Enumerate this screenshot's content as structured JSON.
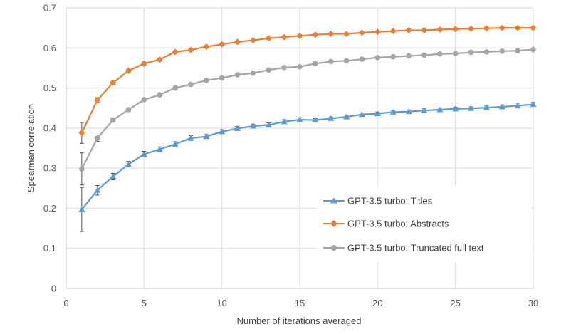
{
  "chart_data": {
    "type": "line",
    "title": "",
    "xlabel": "Number of iterations averaged",
    "ylabel": "Spearman correlation",
    "xlim": [
      0,
      30
    ],
    "ylim": [
      0,
      0.7
    ],
    "xticks": [
      0,
      5,
      10,
      15,
      20,
      25,
      30
    ],
    "yticks": [
      0,
      0.1,
      0.2,
      0.3,
      0.4,
      0.5,
      0.6,
      0.7
    ],
    "ytick_labels": [
      "0",
      "0.1",
      "0.2",
      "0.3",
      "0.4",
      "0.5",
      "0.6",
      "0.7"
    ],
    "grid": "horizontal",
    "legend_position": "lower-right",
    "x": [
      1,
      2,
      3,
      4,
      5,
      6,
      7,
      8,
      9,
      10,
      11,
      12,
      13,
      14,
      15,
      16,
      17,
      18,
      19,
      20,
      21,
      22,
      23,
      24,
      25,
      26,
      27,
      28,
      29,
      30
    ],
    "series": [
      {
        "name": "GPT-3.5 turbo: Titles",
        "color": "#5B9BD5",
        "marker": "triangle",
        "values": [
          0.197,
          0.245,
          0.279,
          0.31,
          0.335,
          0.347,
          0.36,
          0.375,
          0.379,
          0.391,
          0.399,
          0.405,
          0.408,
          0.416,
          0.421,
          0.42,
          0.424,
          0.428,
          0.434,
          0.436,
          0.44,
          0.441,
          0.444,
          0.446,
          0.448,
          0.449,
          0.451,
          0.453,
          0.456,
          0.459
        ],
        "error": [
          0.055,
          0.012,
          0.008,
          0.007,
          0.007,
          0.006,
          0.006,
          0.006,
          0.005,
          0.005,
          0.005,
          0.005,
          0.005,
          0.005,
          0.005,
          0.004,
          0.004,
          0.004,
          0.004,
          0.004,
          0.004,
          0.004,
          0.004,
          0.004,
          0.004,
          0.004,
          0.004,
          0.005,
          0.006,
          0.005
        ]
      },
      {
        "name": "GPT-3.5 turbo: Abstracts",
        "color": "#ED7D31",
        "marker": "diamond",
        "values": [
          0.388,
          0.47,
          0.513,
          0.543,
          0.561,
          0.571,
          0.59,
          0.595,
          0.603,
          0.609,
          0.615,
          0.619,
          0.624,
          0.627,
          0.63,
          0.633,
          0.635,
          0.635,
          0.638,
          0.64,
          0.642,
          0.644,
          0.644,
          0.646,
          0.647,
          0.648,
          0.649,
          0.65,
          0.65,
          0.65
        ],
        "error": [
          0.026,
          0.006,
          0.004,
          0.004,
          0.004,
          0.004,
          0.003,
          0.003,
          0.003,
          0.003,
          0.003,
          0.003,
          0.003,
          0.003,
          0.003,
          0.003,
          0.003,
          0.003,
          0.003,
          0.003,
          0.003,
          0.003,
          0.003,
          0.003,
          0.003,
          0.003,
          0.003,
          0.003,
          0.003,
          0.003
        ]
      },
      {
        "name": "GPT-3.5 turbo: Truncated full text",
        "color": "#A5A5A5",
        "marker": "circle",
        "values": [
          0.298,
          0.375,
          0.42,
          0.446,
          0.471,
          0.483,
          0.5,
          0.509,
          0.519,
          0.525,
          0.533,
          0.537,
          0.545,
          0.551,
          0.553,
          0.561,
          0.566,
          0.568,
          0.572,
          0.576,
          0.578,
          0.58,
          0.582,
          0.585,
          0.586,
          0.589,
          0.59,
          0.592,
          0.593,
          0.596
        ],
        "error": [
          0.04,
          0.008,
          0.005,
          0.004,
          0.004,
          0.004,
          0.004,
          0.003,
          0.003,
          0.003,
          0.003,
          0.003,
          0.003,
          0.003,
          0.003,
          0.003,
          0.003,
          0.003,
          0.003,
          0.003,
          0.003,
          0.003,
          0.003,
          0.003,
          0.003,
          0.003,
          0.003,
          0.003,
          0.003,
          0.003
        ]
      }
    ]
  }
}
